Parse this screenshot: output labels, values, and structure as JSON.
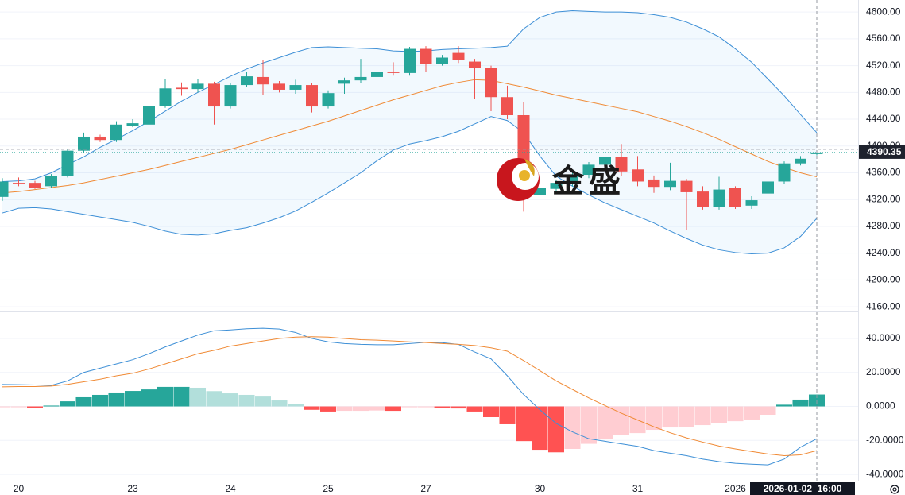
{
  "chart_data": [
    {
      "type": "candlestick",
      "categories": [
        null,
        "20",
        null,
        null,
        null,
        null,
        null,
        null,
        "23",
        null,
        null,
        null,
        null,
        null,
        "24",
        null,
        null,
        null,
        null,
        null,
        "25",
        null,
        null,
        null,
        null,
        null,
        "27",
        null,
        null,
        null,
        null,
        null,
        null,
        "30",
        null,
        null,
        null,
        null,
        null,
        "31",
        null,
        null,
        null,
        null,
        null,
        "2026",
        null,
        null,
        null,
        null,
        null
      ],
      "open": [
        4324,
        4345,
        4345,
        4340,
        4355,
        4393,
        4414,
        4409,
        4430,
        4432,
        4460,
        4487,
        4485,
        4493,
        4459,
        4491,
        4503,
        4493,
        4484,
        4491,
        4459,
        4493,
        4498,
        4503,
        4511,
        4509,
        4545,
        4523,
        4539,
        4526,
        4516,
        4473,
        4446,
        4327,
        4336,
        4345,
        4357,
        4372,
        4384,
        4365,
        4350,
        4339,
        4348,
        4332,
        4309,
        4337,
        4311,
        4329,
        4347,
        4374,
        4388
      ],
      "high": [
        4352,
        4353,
        4348,
        4358,
        4396,
        4420,
        4417,
        4437,
        4440,
        4463,
        4500,
        4495,
        4500,
        4496,
        4494,
        4510,
        4528,
        4497,
        4499,
        4494,
        4483,
        4502,
        4530,
        4518,
        4525,
        4548,
        4549,
        4536,
        4549,
        4530,
        4520,
        4490,
        4466,
        4342,
        4350,
        4362,
        4376,
        4392,
        4403,
        4385,
        4356,
        4375,
        4351,
        4340,
        4354,
        4340,
        4325,
        4352,
        4377,
        4385,
        4392
      ],
      "low": [
        4318,
        4340,
        4336,
        4338,
        4353,
        4390,
        4406,
        4406,
        4428,
        4430,
        4457,
        4475,
        4480,
        4432,
        4456,
        4488,
        4476,
        4480,
        4478,
        4450,
        4456,
        4478,
        4494,
        4500,
        4505,
        4505,
        4510,
        4520,
        4524,
        4470,
        4452,
        4440,
        4302,
        4310,
        4332,
        4340,
        4352,
        4368,
        4355,
        4340,
        4330,
        4334,
        4275,
        4305,
        4305,
        4306,
        4306,
        4326,
        4343,
        4371,
        4386
      ],
      "close": [
        4347,
        4343,
        4338,
        4355,
        4393,
        4414,
        4409,
        4432,
        4434,
        4460,
        4486,
        4485,
        4493,
        4459,
        4491,
        4504,
        4492,
        4484,
        4491,
        4459,
        4479,
        4498,
        4503,
        4511,
        4509,
        4545,
        4523,
        4532,
        4528,
        4516,
        4473,
        4446,
        4333,
        4337,
        4345,
        4357,
        4372,
        4384,
        4362,
        4347,
        4339,
        4348,
        4331,
        4309,
        4335,
        4309,
        4319,
        4347,
        4374,
        4381,
        4390.35
      ],
      "up_color": "#26a69a",
      "down_color": "#ef5350",
      "series": [
        {
          "color": "#3d8fd6",
          "values": [
            4347,
            4348,
            4351,
            4360,
            4372,
            4384,
            4398,
            4410,
            4423,
            4437,
            4452,
            4467,
            4480,
            4492,
            4504,
            4515,
            4524,
            4532,
            4540,
            4547,
            4548,
            4547,
            4546,
            4545,
            4542,
            4541,
            4542,
            4544,
            4545,
            4546,
            4547,
            4549,
            4575,
            4592,
            4600,
            4602,
            4601,
            4600,
            4600,
            4599,
            4596,
            4592,
            4585,
            4575,
            4563,
            4545,
            4525,
            4500,
            4475,
            4447,
            4420
          ]
        },
        {
          "color": "#f08a35",
          "values": [
            4330,
            4332,
            4335,
            4338,
            4341,
            4345,
            4350,
            4355,
            4360,
            4365,
            4371,
            4377,
            4383,
            4389,
            4395,
            4402,
            4409,
            4416,
            4423,
            4430,
            4437,
            4445,
            4453,
            4461,
            4469,
            4476,
            4483,
            4490,
            4495,
            4499,
            4498,
            4493,
            4488,
            4482,
            4476,
            4471,
            4466,
            4461,
            4456,
            4451,
            4444,
            4437,
            4429,
            4420,
            4410,
            4399,
            4388,
            4377,
            4368,
            4360,
            4354
          ]
        },
        {
          "color": "#3d8fd6",
          "values": [
            4300,
            4307,
            4308,
            4306,
            4302,
            4298,
            4294,
            4290,
            4286,
            4280,
            4273,
            4268,
            4267,
            4269,
            4274,
            4278,
            4285,
            4293,
            4303,
            4316,
            4330,
            4345,
            4360,
            4378,
            4394,
            4403,
            4408,
            4414,
            4422,
            4433,
            4444,
            4438,
            4420,
            4385,
            4355,
            4340,
            4327,
            4315,
            4305,
            4295,
            4285,
            4273,
            4262,
            4252,
            4245,
            4241,
            4239,
            4240,
            4248,
            4265,
            4292
          ]
        }
      ],
      "band_fill": "rgba(33,150,243,0.06)",
      "ylim": [
        4153,
        4618
      ],
      "yticks": [
        {
          "value": 4600,
          "label": "4600.00"
        },
        {
          "value": 4560,
          "label": "4560.00"
        },
        {
          "value": 4520,
          "label": "4520.00"
        },
        {
          "value": 4480,
          "label": "4480.00"
        },
        {
          "value": 4440,
          "label": "4440.00"
        },
        {
          "value": 4400,
          "label": "4400.00"
        },
        {
          "value": 4360,
          "label": "4360.00"
        },
        {
          "value": 4320,
          "label": "4320.00"
        },
        {
          "value": 4280,
          "label": "4280.00"
        },
        {
          "value": 4240,
          "label": "4240.00"
        },
        {
          "value": 4200,
          "label": "4200.00"
        },
        {
          "value": 4160,
          "label": "4160.00"
        }
      ],
      "grid": true,
      "last_price": 4390.35,
      "watermark": "金盛",
      "crosshair_label": "2026-01-02  16:00"
    },
    {
      "type": "bar",
      "values": [
        -0.5,
        -0.5,
        -1,
        0.5,
        3,
        5.4,
        6.8,
        8.2,
        9.1,
        10,
        11.5,
        11.5,
        11,
        9,
        7.7,
        6.8,
        5.8,
        3.5,
        1.2,
        -2,
        -3,
        -2.6,
        -2.6,
        -2.4,
        -2.6,
        -0.5,
        -0.5,
        -0.8,
        -1.2,
        -3,
        -6.3,
        -10.5,
        -20.4,
        -25.5,
        -27,
        -25,
        -22,
        -19.4,
        -17,
        -15.7,
        -13.8,
        -12.4,
        -12,
        -11,
        -9.6,
        -8.7,
        -7.7,
        -4.9,
        1,
        4,
        7
      ],
      "hist_colors": {
        "grow_above": "#26a69a",
        "fall_above": "#b2dfdb",
        "grow_below": "#ffcdd2",
        "fall_below": "#ff5252"
      },
      "series": [
        {
          "color": "#3d8fd6",
          "values": [
            12.9,
            12.8,
            12.6,
            12.4,
            15,
            20,
            22.5,
            25,
            27.5,
            31,
            35,
            38.5,
            42,
            44.5,
            45,
            45.7,
            46,
            45.5,
            43.5,
            40,
            38,
            37,
            36.5,
            36.3,
            36.3,
            37,
            37.7,
            37.5,
            36.5,
            32,
            28,
            18,
            7,
            -2,
            -10,
            -15,
            -19,
            -20.5,
            -22,
            -23.5,
            -26,
            -27.5,
            -29,
            -31,
            -32.5,
            -33.5,
            -34,
            -34.4,
            -31,
            -24,
            -19
          ]
        },
        {
          "color": "#f08a35",
          "values": [
            11.5,
            11.7,
            11.7,
            12,
            13,
            14.5,
            16,
            18,
            19.5,
            22,
            25,
            28,
            31,
            33,
            35.5,
            37,
            38.5,
            40,
            40.8,
            41,
            40.8,
            40,
            39.3,
            39,
            38.5,
            38,
            37.6,
            37,
            36.5,
            35.8,
            34.5,
            32.5,
            27,
            21,
            15,
            10,
            5,
            0.5,
            -4,
            -8,
            -12,
            -15.5,
            -18.5,
            -21,
            -23.3,
            -25,
            -26.5,
            -28,
            -29,
            -28.5,
            -26
          ]
        }
      ],
      "ylim": [
        -43.7,
        55.4
      ],
      "yticks": [
        {
          "value": 40,
          "label": "40.0000"
        },
        {
          "value": 20,
          "label": "20.0000"
        },
        {
          "value": 0,
          "label": "0.0000"
        },
        {
          "value": -20,
          "label": "-20.0000"
        },
        {
          "value": -40,
          "label": "-40.0000"
        }
      ],
      "grid": true
    }
  ]
}
